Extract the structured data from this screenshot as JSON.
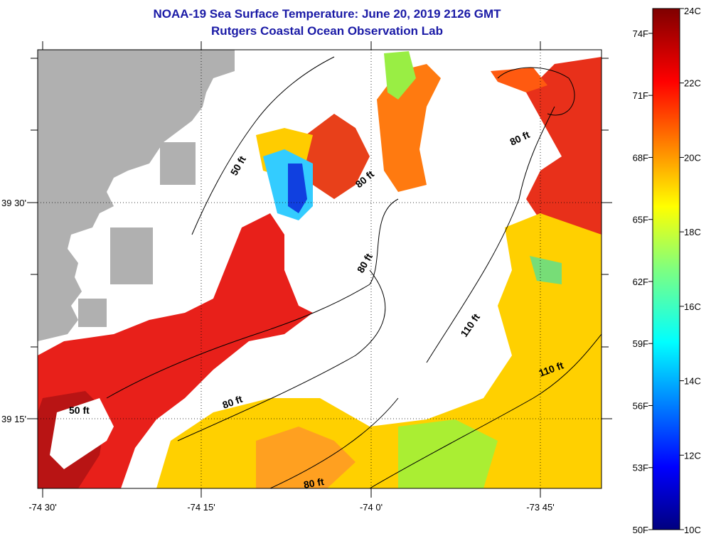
{
  "title": "NOAA-19 Sea Surface Temperature:  June 20, 2019 2126 GMT",
  "subtitle": "Rutgers Coastal Ocean Observation Lab",
  "map": {
    "x_tick_labels": [
      "-74 30'",
      "-74 15'",
      "-74 0'",
      "-73 45'"
    ],
    "y_tick_labels": [
      "39 30'",
      "39 15'"
    ],
    "land_color": "#b0b0b0",
    "no_data_color": "#ffffff",
    "contour_labels": [
      "50 ft",
      "80 ft",
      "80 ft",
      "80 ft",
      "80 ft",
      "110 ft",
      "110 ft",
      "50 ft",
      "80 ft"
    ]
  },
  "colorbar": {
    "celsius_labels": [
      "24C",
      "22C",
      "20C",
      "18C",
      "16C",
      "14C",
      "12C",
      "10C"
    ],
    "fahrenheit_labels": [
      "74F",
      "71F",
      "68F",
      "65F",
      "62F",
      "59F",
      "56F",
      "53F",
      "50F"
    ],
    "min_c": 10,
    "max_c": 24
  }
}
